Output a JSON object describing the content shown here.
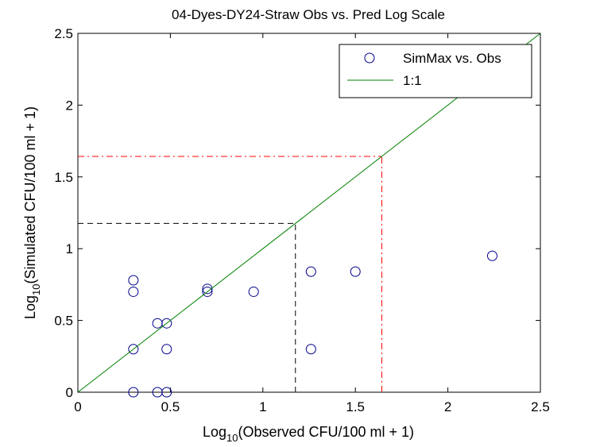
{
  "chart_data": {
    "type": "scatter",
    "title": "04-Dyes-DY24-Straw Obs vs. Pred Log Scale",
    "xlabel": {
      "prefix": "Log",
      "sub": "10",
      "suffix": "(Observed CFU/100 ml + 1)"
    },
    "ylabel": {
      "prefix": "Log",
      "sub": "10",
      "suffix": "(Simulated CFU/100 ml + 1)"
    },
    "xlim": [
      0,
      2.5
    ],
    "ylim": [
      0,
      2.5
    ],
    "xticks": [
      0,
      0.5,
      1,
      1.5,
      2,
      2.5
    ],
    "yticks": [
      0,
      0.5,
      1,
      1.5,
      2,
      2.5
    ],
    "xtick_labels": [
      "0",
      "0.5",
      "1",
      "1.5",
      "2",
      "2.5"
    ],
    "ytick_labels": [
      "0",
      "0.5",
      "1",
      "1.5",
      "2",
      "2.5"
    ],
    "legend": {
      "placement": "top-right",
      "entries": [
        "SimMax vs. Obs",
        "1:1"
      ]
    },
    "series": [
      {
        "name": "SimMax vs. Obs",
        "kind": "scatter",
        "marker": "circle",
        "color": "#00008b",
        "points": [
          [
            0.3,
            0.0
          ],
          [
            0.43,
            0.0
          ],
          [
            0.48,
            0.0
          ],
          [
            0.3,
            0.3
          ],
          [
            0.48,
            0.3
          ],
          [
            1.26,
            0.3
          ],
          [
            0.43,
            0.48
          ],
          [
            0.48,
            0.48
          ],
          [
            0.3,
            0.7
          ],
          [
            0.3,
            0.78
          ],
          [
            0.7,
            0.7
          ],
          [
            0.7,
            0.72
          ],
          [
            0.95,
            0.7
          ],
          [
            1.26,
            0.84
          ],
          [
            1.5,
            0.84
          ],
          [
            2.24,
            0.95
          ]
        ]
      },
      {
        "name": "1:1",
        "kind": "line",
        "color": "#008000",
        "points": [
          [
            0,
            0
          ],
          [
            2.5,
            2.5
          ]
        ]
      }
    ],
    "reference_lines": [
      {
        "style": "dashed",
        "color": "#000000",
        "value": 1.176
      },
      {
        "style": "dashdot",
        "color": "#ff0000",
        "value": 1.643
      }
    ]
  }
}
